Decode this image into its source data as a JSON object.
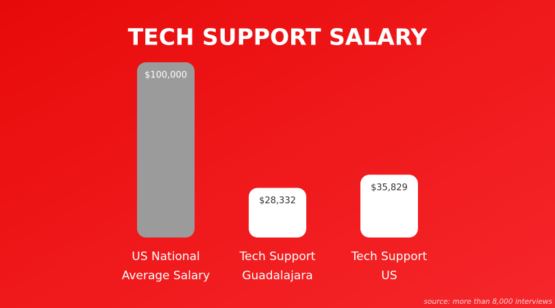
{
  "chart_data": {
    "type": "bar",
    "title": "TECH SUPPORT SALARY",
    "categories": [
      "US National\nAverage Salary",
      "Tech Support\nGuadalajara",
      "Tech Support\nUS"
    ],
    "values": [
      100000,
      28332,
      35829
    ],
    "value_labels": [
      "$100,000",
      "$28,332",
      "$35,829"
    ],
    "colors": [
      "#9b9b9b",
      "#ffffff",
      "#ffffff"
    ],
    "source": "source: more than 8,000 interviews"
  }
}
